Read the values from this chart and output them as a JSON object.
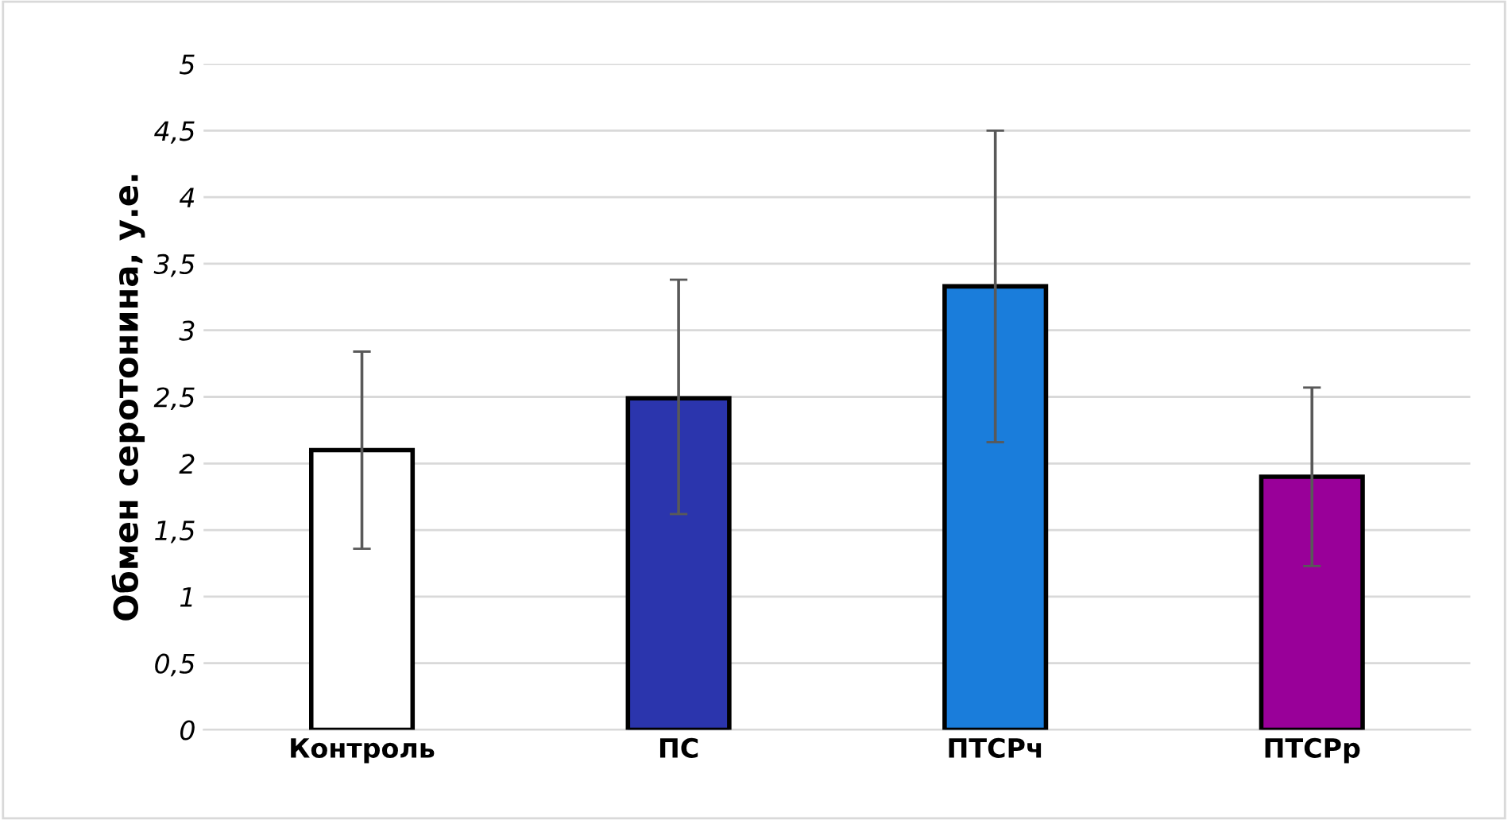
{
  "chart_data": {
    "type": "bar",
    "ylabel": "Обмен серотонина, у.е.",
    "categories": [
      "Контроль",
      "ПС",
      "ПТСРч",
      "ПТСРр"
    ],
    "values": [
      2.1,
      2.49,
      3.33,
      1.9
    ],
    "colors": [
      "#ffffff",
      "#2b35ad",
      "#1a7ddb",
      "#990099"
    ],
    "errors": [
      [
        1.36,
        2.84
      ],
      [
        1.62,
        3.38
      ],
      [
        2.16,
        4.5
      ],
      [
        1.23,
        2.57
      ]
    ],
    "ylim": [
      0,
      5
    ],
    "yticks": [
      0,
      {
        "value": 0.5,
        "label": "0,5"
      },
      1,
      {
        "value": 1.5,
        "label": "1,5"
      },
      2,
      {
        "value": 2.5,
        "label": "2,5"
      },
      3,
      {
        "value": 3.5,
        "label": "3,5"
      },
      4,
      {
        "value": 4.5,
        "label": "4,5"
      },
      5
    ],
    "grid": "y"
  }
}
